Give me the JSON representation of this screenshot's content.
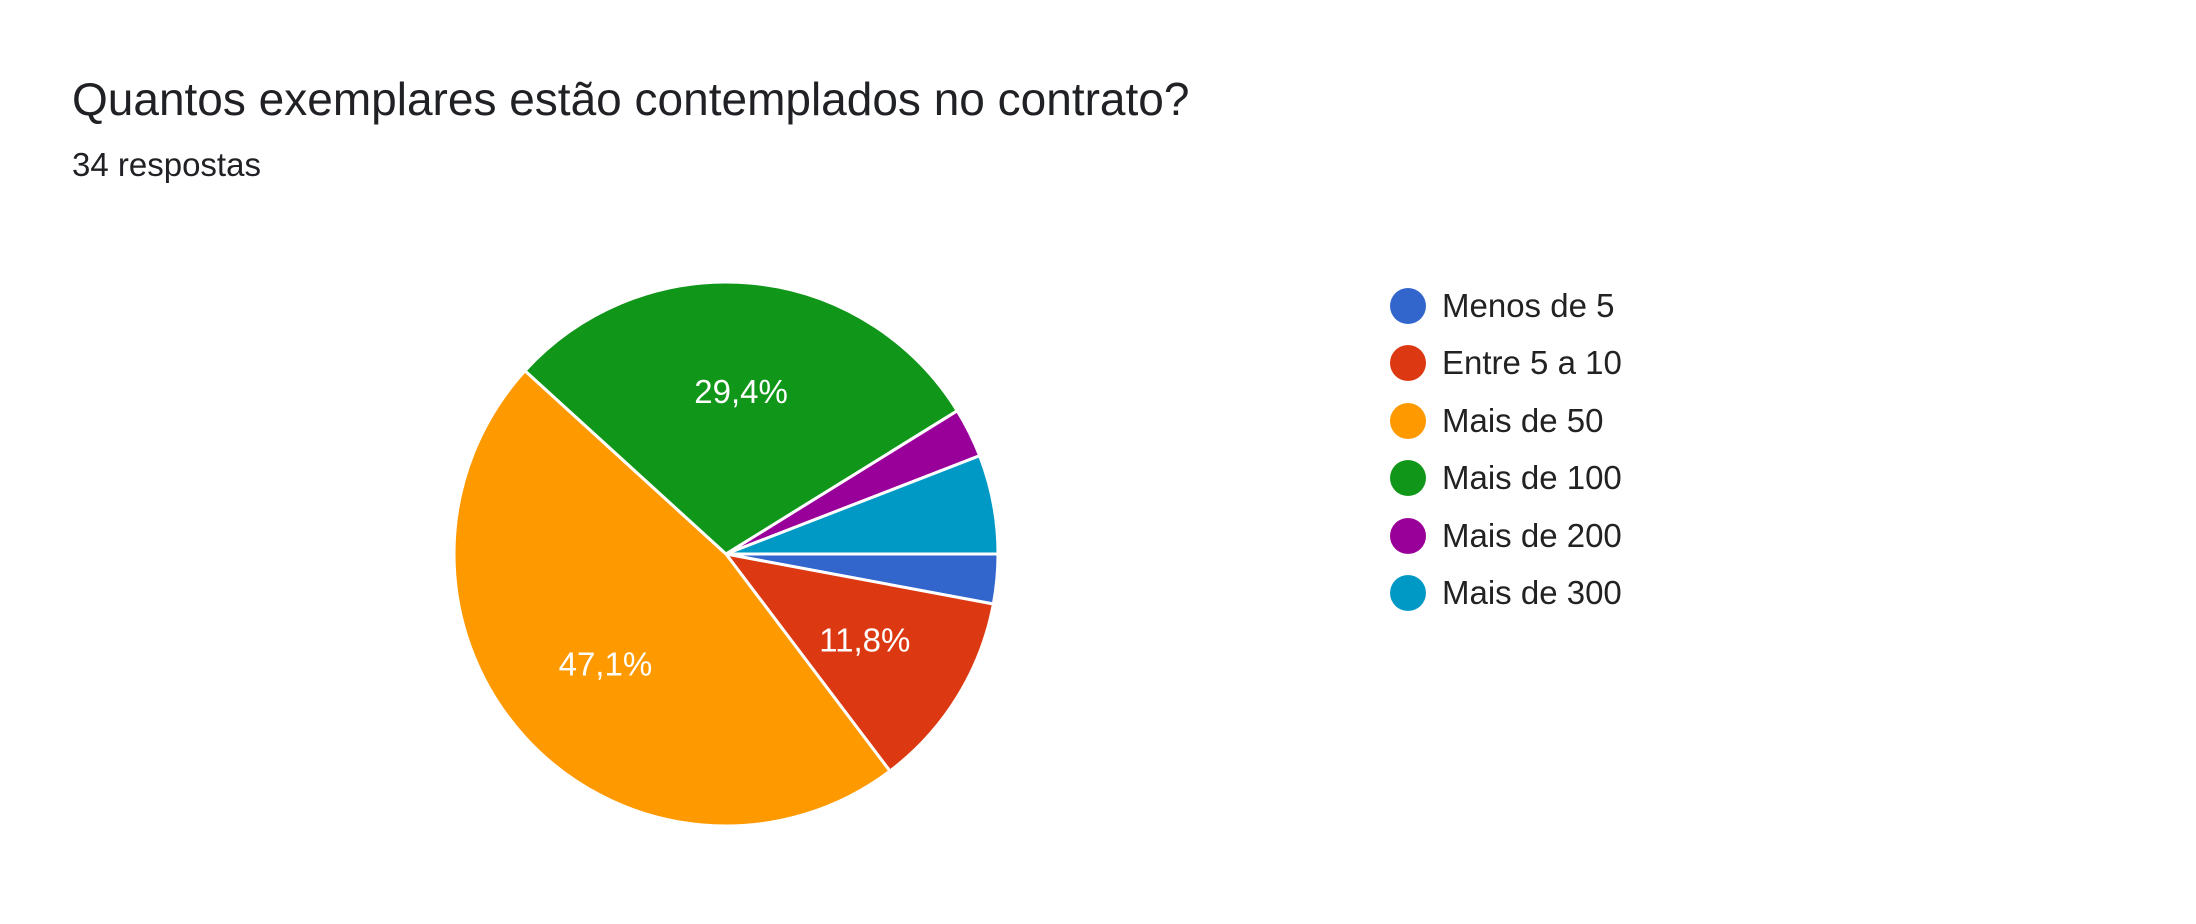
{
  "title": "Quantos exemplares estão contemplados no contrato?",
  "subtitle": "34 respostas",
  "chart_data": {
    "type": "pie",
    "title": "Quantos exemplares estão contemplados no contrato?",
    "total_responses": 34,
    "legend_position": "right",
    "slices": [
      {
        "name": "Menos de 5",
        "value": 1,
        "percent": 2.9,
        "label": "",
        "color": "#3366cc"
      },
      {
        "name": "Entre 5 a 10",
        "value": 4,
        "percent": 11.8,
        "label": "11,8%",
        "color": "#dc3912"
      },
      {
        "name": "Mais de 50",
        "value": 16,
        "percent": 47.1,
        "label": "47,1%",
        "color": "#ff9900"
      },
      {
        "name": "Mais de 100",
        "value": 10,
        "percent": 29.4,
        "label": "29,4%",
        "color": "#109618"
      },
      {
        "name": "Mais de 200",
        "value": 1,
        "percent": 2.9,
        "label": "",
        "color": "#990099"
      },
      {
        "name": "Mais de 300",
        "value": 2,
        "percent": 5.9,
        "label": "",
        "color": "#0099c6"
      }
    ]
  }
}
